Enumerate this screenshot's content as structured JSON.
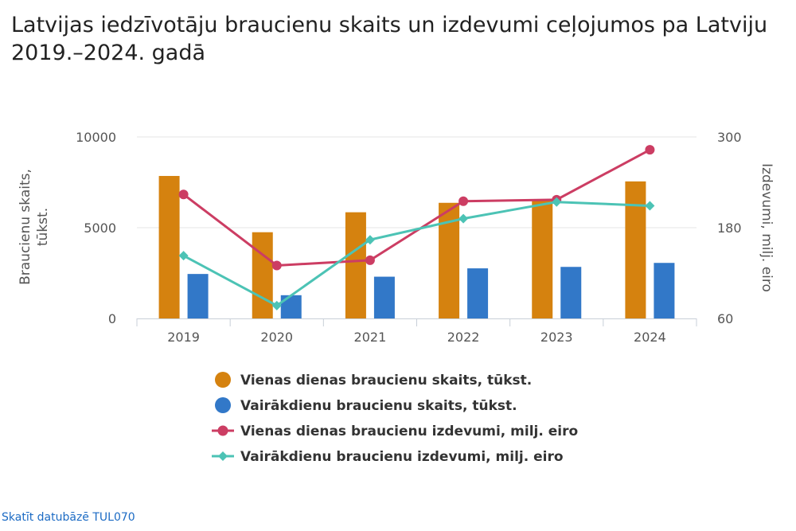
{
  "title": "Latvijas iedzīvotāju braucienu skaits un izdevumi ceļojumos pa Latviju 2019.–2024. gadā",
  "link_text": "Skatīt datubāzē TUL070",
  "colors": {
    "bar_day": "#d5820f",
    "bar_multi": "#3278c8",
    "line_day": "#cc3d63",
    "line_multi": "#4cc3b5",
    "axis_text": "#555555",
    "grid": "#e6e6e6",
    "legend_text": "#333333",
    "link": "#1c6bc4"
  },
  "chart_data": {
    "type": "bar",
    "categories": [
      "2019",
      "2020",
      "2021",
      "2022",
      "2023",
      "2024"
    ],
    "ylabel_left": "Braucienu skaits, tūkst.",
    "ylabel_right": "Izdevumi, milj. eiro",
    "y_left": {
      "min": 0,
      "max": 10000,
      "ticks": [
        0,
        5000,
        10000
      ]
    },
    "y_right": {
      "min": 60,
      "max": 300,
      "ticks": [
        60,
        180,
        300
      ]
    },
    "grid": true,
    "legend_position": "bottom",
    "series": [
      {
        "name": "Vienas dienas braucienu skaits, tūkst.",
        "type": "bar",
        "axis": "left",
        "values": [
          7850,
          4750,
          5850,
          6370,
          6470,
          7550
        ]
      },
      {
        "name": "Vairākdienu braucienu skaits, tūkst.",
        "type": "bar",
        "axis": "left",
        "values": [
          2450,
          1280,
          2300,
          2760,
          2840,
          3060
        ]
      },
      {
        "name": "Vienas dienas braucienu izdevumi, milj. eiro",
        "type": "line",
        "marker": "circle",
        "axis": "right",
        "values": [
          224,
          130,
          137,
          215,
          217,
          283
        ]
      },
      {
        "name": "Vairākdienu braucienu izdevumi, milj. eiro",
        "type": "line",
        "marker": "diamond",
        "axis": "right",
        "values": [
          143,
          77,
          164,
          192,
          214,
          209
        ]
      }
    ]
  }
}
